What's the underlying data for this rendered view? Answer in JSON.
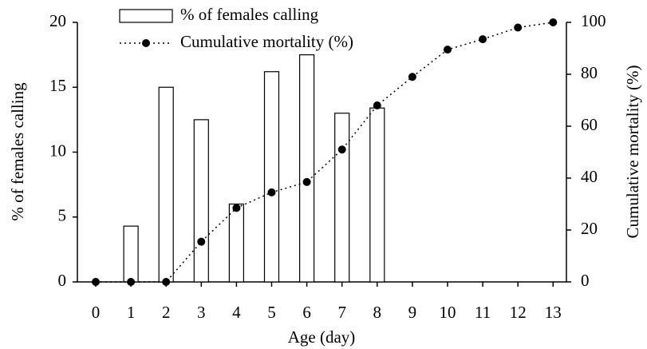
{
  "chart_data": {
    "type": "bar_line",
    "x_label": "Age (day)",
    "y_label": "% of females calling",
    "y2_label": "Cumulative mortality (%)",
    "categories": [
      "0",
      "1",
      "2",
      "3",
      "4",
      "5",
      "6",
      "7",
      "8",
      "9",
      "10",
      "11",
      "12",
      "13"
    ],
    "series": [
      {
        "name": "% of females calling",
        "type": "bar",
        "color": "#ffffff",
        "stroke": "#000000",
        "values": [
          0,
          4.3,
          15.0,
          12.5,
          6.0,
          16.2,
          17.5,
          13.0,
          13.4,
          0,
          0,
          0,
          0,
          0
        ]
      },
      {
        "name": "Cumulative mortality (%)",
        "type": "line",
        "axis": "y2",
        "color": "#000000",
        "values": [
          0,
          0,
          0,
          15.5,
          28.5,
          34.5,
          38.5,
          51,
          68,
          79,
          89.5,
          93.5,
          98,
          100
        ]
      }
    ],
    "ylim": [
      0,
      20
    ],
    "yticks": [
      0,
      5,
      10,
      15,
      20
    ],
    "y2lim": [
      0,
      100
    ],
    "y2ticks": [
      0,
      20,
      40,
      60,
      80,
      100
    ],
    "legend": "upper center"
  }
}
